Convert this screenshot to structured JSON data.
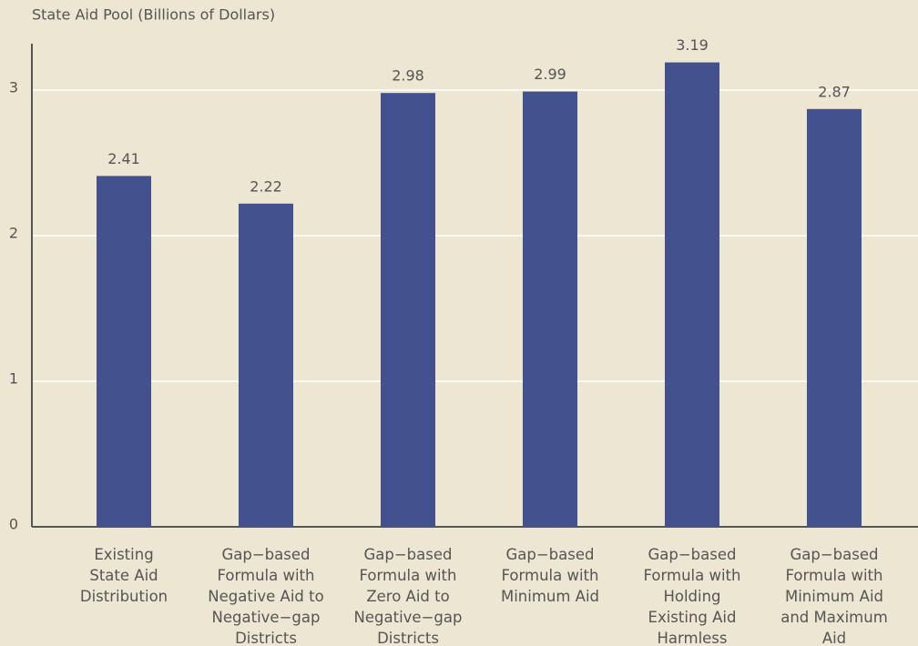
{
  "chart_data": {
    "type": "bar",
    "y_label": "State Aid Pool (Billions of Dollars)",
    "categories": [
      "Existing\nState Aid\nDistribution",
      "Gap−based\nFormula with\nNegative Aid to\nNegative−gap\nDistricts",
      "Gap−based\nFormula with\nZero Aid to\nNegative−gap\nDistricts",
      "Gap−based\nFormula with\nMinimum Aid",
      "Gap−based\nFormula with\nHolding\nExisting Aid\nHarmless",
      "Gap−based\nFormula with\nMinimum Aid\nand Maximum\nAid"
    ],
    "values": [
      2.41,
      2.22,
      2.98,
      2.99,
      3.19,
      2.87
    ],
    "color": "#43528f",
    "ylim": [
      0,
      3.3
    ],
    "yticks": [
      0,
      1,
      2,
      3
    ],
    "grid": true
  }
}
